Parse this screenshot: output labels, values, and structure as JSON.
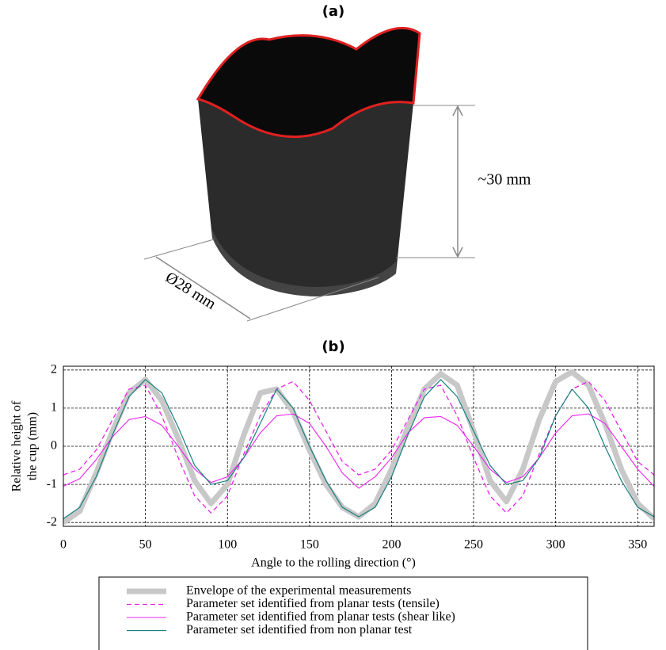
{
  "figure": {
    "panel_a_label": "(a)",
    "panel_b_label": "(b)",
    "height_label": "~30 mm",
    "diameter_label": "Ø28 mm"
  },
  "chart_data": {
    "type": "line",
    "ylabel": [
      "Relative height of",
      "the cup (mm)"
    ],
    "xlabel": "Angle to the rolling direction (°)",
    "x": [
      0,
      10,
      20,
      30,
      40,
      50,
      60,
      70,
      80,
      90,
      100,
      110,
      120,
      130,
      140,
      150,
      160,
      170,
      180,
      190,
      200,
      210,
      220,
      230,
      240,
      250,
      260,
      270,
      280,
      290,
      300,
      310,
      320,
      330,
      340,
      350,
      360
    ],
    "xlim": [
      0,
      360
    ],
    "xticks": [
      0,
      50,
      100,
      150,
      200,
      250,
      300,
      350
    ],
    "ylim": [
      -2.1,
      2.1
    ],
    "yticks": [
      -2,
      -1,
      0,
      1,
      2
    ],
    "grid": true,
    "series": [
      {
        "name": "Envelope of the experimental measurements",
        "color": "#c8c8c8",
        "width": 7,
        "dash": false,
        "values": [
          -2.0,
          -1.7,
          -0.7,
          0.4,
          1.4,
          1.75,
          1.2,
          0.2,
          -0.9,
          -1.5,
          -1.0,
          0.3,
          1.4,
          1.5,
          0.9,
          -0.1,
          -1.0,
          -1.6,
          -1.85,
          -1.5,
          -0.6,
          0.5,
          1.5,
          1.9,
          1.6,
          0.4,
          -0.9,
          -1.45,
          -0.6,
          0.7,
          1.7,
          1.95,
          1.6,
          0.6,
          -0.6,
          -1.5,
          -1.9
        ]
      },
      {
        "name": "Parameter set identified from planar tests (tensile)",
        "color": "#ee22ee",
        "width": 1.3,
        "dash": true,
        "values": [
          -0.75,
          -0.6,
          -0.1,
          0.7,
          1.5,
          1.6,
          0.8,
          -0.3,
          -1.3,
          -1.75,
          -1.3,
          -0.2,
          0.8,
          1.5,
          1.7,
          1.2,
          0.4,
          -0.4,
          -0.75,
          -0.6,
          -0.1,
          0.7,
          1.5,
          1.6,
          0.8,
          -0.3,
          -1.3,
          -1.75,
          -1.3,
          -0.2,
          0.8,
          1.5,
          1.7,
          1.2,
          0.4,
          -0.4,
          -0.75
        ]
      },
      {
        "name": "Parameter set identified from planar tests (shear like)",
        "color": "#ee22ee",
        "width": 1.1,
        "dash": false,
        "values": [
          -1.05,
          -0.85,
          -0.35,
          0.25,
          0.7,
          0.78,
          0.55,
          0.0,
          -0.6,
          -0.95,
          -0.8,
          -0.3,
          0.35,
          0.8,
          0.85,
          0.6,
          0.0,
          -0.7,
          -1.1,
          -0.8,
          -0.3,
          0.35,
          0.75,
          0.78,
          0.55,
          0.0,
          -0.6,
          -0.95,
          -0.8,
          -0.3,
          0.35,
          0.8,
          0.85,
          0.6,
          0.0,
          -0.6,
          -1.05
        ]
      },
      {
        "name": "Parameter set identified from non planar test",
        "color": "#1a7f7f",
        "width": 1.2,
        "dash": false,
        "values": [
          -1.9,
          -1.6,
          -0.8,
          0.3,
          1.3,
          1.75,
          1.4,
          0.5,
          -0.5,
          -1.0,
          -0.9,
          -0.3,
          0.6,
          1.5,
          1.0,
          0.0,
          -0.9,
          -1.6,
          -1.85,
          -1.6,
          -0.8,
          0.3,
          1.3,
          1.75,
          1.3,
          0.4,
          -0.5,
          -1.0,
          -0.9,
          -0.3,
          0.8,
          1.5,
          1.0,
          0.0,
          -0.9,
          -1.6,
          -1.85
        ]
      }
    ]
  }
}
